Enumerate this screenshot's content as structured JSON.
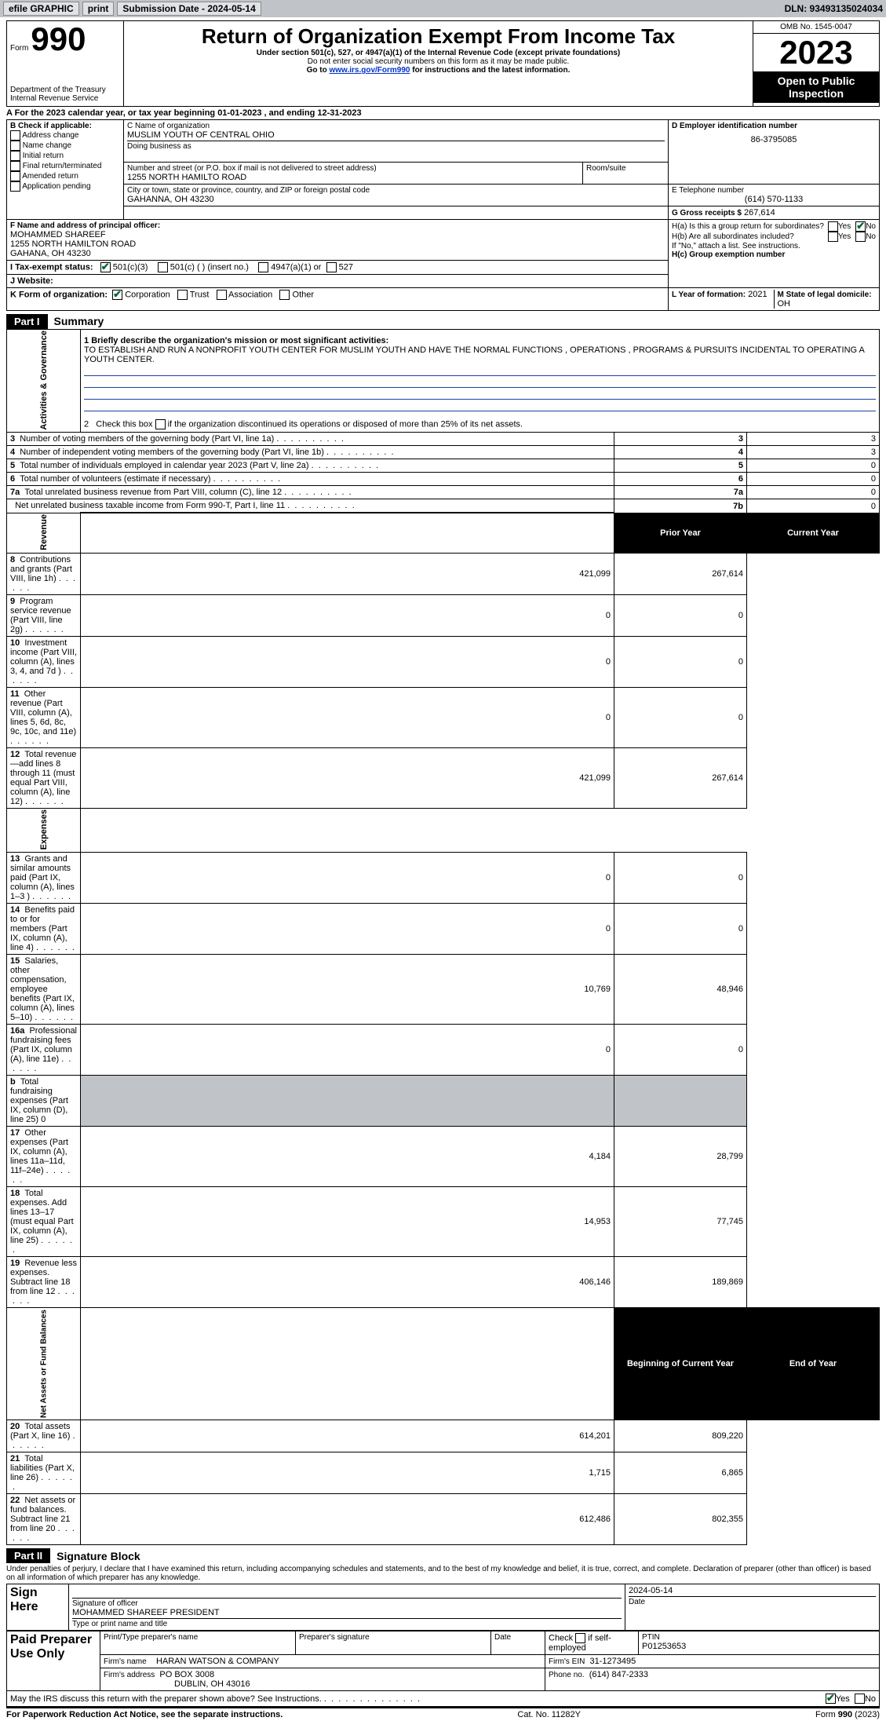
{
  "topbar": {
    "efile": "efile GRAPHIC",
    "print": "print",
    "submission": "Submission Date - 2024-05-14",
    "dln": "DLN: 93493135024034"
  },
  "header": {
    "form_label": "Form",
    "form_no": "990",
    "title": "Return of Organization Exempt From Income Tax",
    "subtitle": "Under section 501(c), 527, or 4947(a)(1) of the Internal Revenue Code (except private foundations)",
    "ssn_note": "Do not enter social security numbers on this form as it may be made public.",
    "goto_pre": "Go to ",
    "goto_link": "www.irs.gov/Form990",
    "goto_post": " for instructions and the latest information.",
    "dept": "Department of the Treasury",
    "irs": "Internal Revenue Service",
    "omb": "OMB No. 1545-0047",
    "year": "2023",
    "open": "Open to Public Inspection"
  },
  "A": {
    "line": "A For the 2023 calendar year, or tax year beginning 01-01-2023   , and ending 12-31-2023"
  },
  "B": {
    "label": "B Check if applicable:",
    "items": [
      "Address change",
      "Name change",
      "Initial return",
      "Final return/terminated",
      "Amended return",
      "Application pending"
    ]
  },
  "C": {
    "name_lbl": "C Name of organization",
    "name": "MUSLIM YOUTH OF CENTRAL OHIO",
    "dba_lbl": "Doing business as",
    "addr_lbl": "Number and street (or P.O. box if mail is not delivered to street address)",
    "addr": "1255 NORTH HAMILTO ROAD",
    "room_lbl": "Room/suite",
    "city_lbl": "City or town, state or province, country, and ZIP or foreign postal code",
    "city": "GAHANNA, OH  43230"
  },
  "D": {
    "lbl": "D Employer identification number",
    "val": "86-3795085"
  },
  "E": {
    "lbl": "E Telephone number",
    "val": "(614) 570-1133"
  },
  "G": {
    "lbl": "G Gross receipts $",
    "val": "267,614"
  },
  "F": {
    "lbl": "F  Name and address of principal officer:",
    "name": "MOHAMMED SHAREEF",
    "addr1": "1255 NORTH HAMILTON ROAD",
    "addr2": "GAHANA, OH  43230"
  },
  "H": {
    "a_lbl": "H(a)  Is this a group return for subordinates?",
    "b_lbl": "H(b)  Are all subordinates included?",
    "b_note": "If \"No,\" attach a list. See instructions.",
    "c_lbl": "H(c)  Group exemption number",
    "yes": "Yes",
    "no": "No"
  },
  "I": {
    "lbl": "I   Tax-exempt status:",
    "o1": "501(c)(3)",
    "o2": "501(c) (  ) (insert no.)",
    "o3": "4947(a)(1) or",
    "o4": "527"
  },
  "J": {
    "lbl": "J   Website:"
  },
  "K": {
    "lbl": "K Form of organization:",
    "o1": "Corporation",
    "o2": "Trust",
    "o3": "Association",
    "o4": "Other"
  },
  "L": {
    "lbl": "L Year of formation:",
    "val": "2021"
  },
  "M": {
    "lbl": "M State of legal domicile:",
    "val": "OH"
  },
  "partI": {
    "label": "Part I",
    "title": "Summary",
    "q1_lbl": "1  Briefly describe the organization's mission or most significant activities:",
    "q1_text": "TO ESTABLISH AND RUN A NONPROFIT YOUTH CENTER FOR MUSLIM YOUTH AND HAVE THE NORMAL FUNCTIONS , OPERATIONS , PROGRAMS & PURSUITS INCIDENTAL TO OPERATING A YOUTH CENTER.",
    "q2": "2   Check this box        if the organization discontinued its operations or disposed of more than 25% of its net assets.",
    "sections": {
      "ag": "Activities & Governance",
      "rev": "Revenue",
      "exp": "Expenses",
      "nab": "Net Assets or Fund Balances"
    },
    "rows_ag": [
      {
        "n": "3",
        "t": "Number of voting members of the governing body (Part VI, line 1a)",
        "k": "3",
        "v": "3"
      },
      {
        "n": "4",
        "t": "Number of independent voting members of the governing body (Part VI, line 1b)",
        "k": "4",
        "v": "3"
      },
      {
        "n": "5",
        "t": "Total number of individuals employed in calendar year 2023 (Part V, line 2a)",
        "k": "5",
        "v": "0"
      },
      {
        "n": "6",
        "t": "Total number of volunteers (estimate if necessary)",
        "k": "6",
        "v": "0"
      },
      {
        "n": "7a",
        "t": "Total unrelated business revenue from Part VIII, column (C), line 12",
        "k": "7a",
        "v": "0"
      },
      {
        "n": "",
        "t": "Net unrelated business taxable income from Form 990-T, Part I, line 11",
        "k": "7b",
        "v": "0"
      }
    ],
    "headers": {
      "prior": "Prior Year",
      "current": "Current Year",
      "boy": "Beginning of Current Year",
      "eoy": "End of Year"
    },
    "rows_rev": [
      {
        "n": "8",
        "t": "Contributions and grants (Part VIII, line 1h)",
        "p": "421,099",
        "c": "267,614"
      },
      {
        "n": "9",
        "t": "Program service revenue (Part VIII, line 2g)",
        "p": "0",
        "c": "0"
      },
      {
        "n": "10",
        "t": "Investment income (Part VIII, column (A), lines 3, 4, and 7d )",
        "p": "0",
        "c": "0"
      },
      {
        "n": "11",
        "t": "Other revenue (Part VIII, column (A), lines 5, 6d, 8c, 9c, 10c, and 11e)",
        "p": "0",
        "c": "0"
      },
      {
        "n": "12",
        "t": "Total revenue—add lines 8 through 11 (must equal Part VIII, column (A), line 12)",
        "p": "421,099",
        "c": "267,614"
      }
    ],
    "rows_exp": [
      {
        "n": "13",
        "t": "Grants and similar amounts paid (Part IX, column (A), lines 1–3 )",
        "p": "0",
        "c": "0"
      },
      {
        "n": "14",
        "t": "Benefits paid to or for members (Part IX, column (A), line 4)",
        "p": "0",
        "c": "0"
      },
      {
        "n": "15",
        "t": "Salaries, other compensation, employee benefits (Part IX, column (A), lines 5–10)",
        "p": "10,769",
        "c": "48,946"
      },
      {
        "n": "16a",
        "t": "Professional fundraising fees (Part IX, column (A), line 11e)",
        "p": "0",
        "c": "0"
      },
      {
        "n": "b",
        "t": "Total fundraising expenses (Part IX, column (D), line 25) 0",
        "p": null,
        "c": null,
        "grey": true
      },
      {
        "n": "17",
        "t": "Other expenses (Part IX, column (A), lines 11a–11d, 11f–24e)",
        "p": "4,184",
        "c": "28,799"
      },
      {
        "n": "18",
        "t": "Total expenses. Add lines 13–17 (must equal Part IX, column (A), line 25)",
        "p": "14,953",
        "c": "77,745"
      },
      {
        "n": "19",
        "t": "Revenue less expenses. Subtract line 18 from line 12",
        "p": "406,146",
        "c": "189,869"
      }
    ],
    "rows_nab": [
      {
        "n": "20",
        "t": "Total assets (Part X, line 16)",
        "p": "614,201",
        "c": "809,220"
      },
      {
        "n": "21",
        "t": "Total liabilities (Part X, line 26)",
        "p": "1,715",
        "c": "6,865"
      },
      {
        "n": "22",
        "t": "Net assets or fund balances. Subtract line 21 from line 20",
        "p": "612,486",
        "c": "802,355"
      }
    ]
  },
  "partII": {
    "label": "Part II",
    "title": "Signature Block",
    "perjury": "Under penalties of perjury, I declare that I have examined this return, including accompanying schedules and statements, and to the best of my knowledge and belief, it is true, correct, and complete. Declaration of preparer (other than officer) is based on all information of which preparer has any knowledge."
  },
  "sign": {
    "here": "Sign Here",
    "sig_lbl": "Signature of officer",
    "officer": "MOHAMMED SHAREEF  PRESIDENT",
    "type_lbl": "Type or print name and title",
    "date_lbl": "Date",
    "date": "2024-05-14"
  },
  "paid": {
    "label": "Paid Preparer Use Only",
    "print_lbl": "Print/Type preparer's name",
    "sig_lbl": "Preparer's signature",
    "date_lbl": "Date",
    "check_lbl": "Check        if self-employed",
    "ptin_lbl": "PTIN",
    "ptin": "P01253653",
    "firm_name_lbl": "Firm's name",
    "firm_name": "HARAN WATSON & COMPANY",
    "firm_ein_lbl": "Firm's EIN",
    "firm_ein": "31-1273495",
    "firm_addr_lbl": "Firm's address",
    "firm_addr1": "PO BOX 3008",
    "firm_addr2": "DUBLIN, OH  43016",
    "phone_lbl": "Phone no.",
    "phone": "(614) 847-2333"
  },
  "bottom": {
    "discuss": "May the IRS discuss this return with the preparer shown above? See Instructions.",
    "yes": "Yes",
    "no": "No",
    "paperwork": "For Paperwork Reduction Act Notice, see the separate instructions.",
    "cat": "Cat. No. 11282Y",
    "form": "Form 990 (2023)"
  }
}
